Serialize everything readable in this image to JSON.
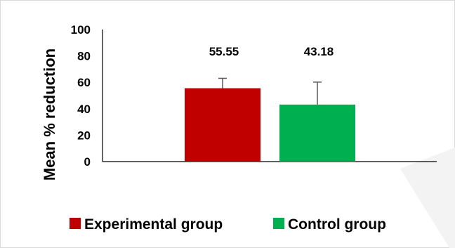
{
  "chart_data": {
    "type": "bar",
    "title": "",
    "xlabel": "",
    "ylabel": "Mean % reduction",
    "ylim": [
      0,
      100
    ],
    "yticks": [
      0,
      20,
      40,
      60,
      80,
      100
    ],
    "grid": false,
    "legend_position": "bottom",
    "series": [
      {
        "name": "Experimental group",
        "value": 55.55,
        "label": "55.55",
        "error_plus": 7.5,
        "color": "#c00000"
      },
      {
        "name": "Control group",
        "value": 43.18,
        "label": "43.18",
        "error_plus": 17,
        "color": "#00b050"
      }
    ]
  }
}
